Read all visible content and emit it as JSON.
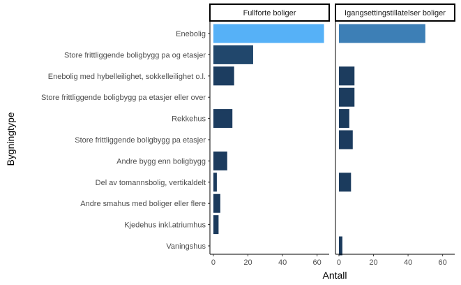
{
  "chart_data": {
    "type": "bar",
    "orientation": "horizontal",
    "xlabel": "Antall",
    "ylabel": "Bygningtype",
    "xlim": [
      -2,
      67
    ],
    "xticks": [
      0,
      20,
      40,
      60
    ],
    "grid": false,
    "color_scale": {
      "low": "#1b3a5c",
      "high": "#56b1f7"
    },
    "categories": [
      "Enebolig",
      "Store frittliggende boligbygg pa  og  etasjer",
      "Enebolig med hybelleilighet, sokkelleilighet o.l.",
      "Store frittliggende boligbygg pa  etasjer eller over",
      "Rekkehus",
      "Store frittliggende boligbygg pa  etasjer",
      "Andre bygg enn boligbygg",
      "Del av tomannsbolig, vertikaldelt",
      "Andre smahus med  boliger eller flere",
      "Kjedehus inkl.atriumhus",
      "Vaningshus"
    ],
    "series": [
      {
        "name": "Fullforte boliger",
        "values": [
          64,
          23,
          12,
          null,
          11,
          null,
          8,
          2,
          4,
          3,
          null
        ]
      },
      {
        "name": "Igangsettingstillatelser boliger",
        "values": [
          50,
          null,
          9,
          9,
          6,
          8,
          null,
          7,
          null,
          null,
          2
        ]
      }
    ]
  }
}
